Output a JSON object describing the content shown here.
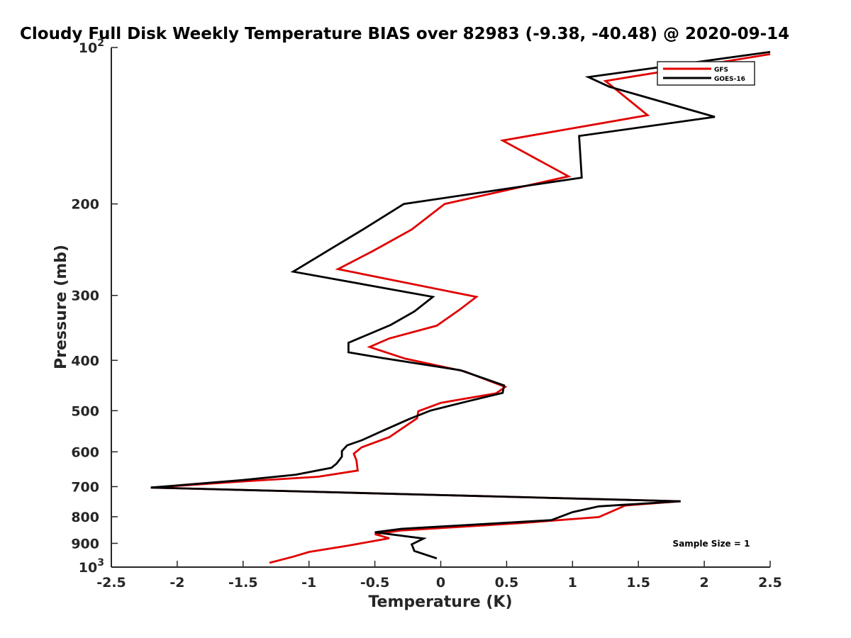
{
  "chart_data": {
    "type": "line",
    "title": "Cloudy Full Disk Weekly Temperature BIAS over 82983 (-9.38, -40.48) @ 2020-09-14",
    "xlabel": "Temperature (K)",
    "ylabel": "Pressure (mb)",
    "xlim": [
      -2.5,
      2.5
    ],
    "ylim": [
      100,
      1000
    ],
    "y_scale": "log",
    "y_reversed": true,
    "x_ticks": [
      "-2.5",
      "-2",
      "-1.5",
      "-1",
      "-0.5",
      "0",
      "0.5",
      "1",
      "1.5",
      "2",
      "2.5"
    ],
    "y_ticks": [
      {
        "value": 100,
        "base": "10",
        "exp": "2",
        "label": ""
      },
      {
        "value": 200,
        "label": "200"
      },
      {
        "value": 300,
        "label": "300"
      },
      {
        "value": 400,
        "label": "400"
      },
      {
        "value": 500,
        "label": "500"
      },
      {
        "value": 600,
        "label": "600"
      },
      {
        "value": 700,
        "label": "700"
      },
      {
        "value": 800,
        "label": "800"
      },
      {
        "value": 900,
        "label": "900"
      },
      {
        "value": 1000,
        "base": "10",
        "exp": "3",
        "label": ""
      }
    ],
    "grid": false,
    "legend_position": "top-right",
    "annotation": "Sample Size = 1",
    "series": [
      {
        "name": "GFS",
        "color": "#e00000",
        "points": [
          [
            2.5,
            103
          ],
          [
            1.25,
            116
          ],
          [
            1.57,
            135
          ],
          [
            0.47,
            151
          ],
          [
            0.97,
            177
          ],
          [
            0.03,
            200
          ],
          [
            -0.22,
            224
          ],
          [
            -0.51,
            246
          ],
          [
            -0.78,
            267
          ],
          [
            0.27,
            302
          ],
          [
            0.14,
            320
          ],
          [
            -0.03,
            343
          ],
          [
            -0.39,
            363
          ],
          [
            -0.54,
            377
          ],
          [
            -0.27,
            397
          ],
          [
            0.18,
            420
          ],
          [
            0.49,
            450
          ],
          [
            0.42,
            463
          ],
          [
            0.0,
            483
          ],
          [
            -0.17,
            501
          ],
          [
            -0.18,
            517
          ],
          [
            -0.39,
            562
          ],
          [
            -0.6,
            588
          ],
          [
            -0.66,
            605
          ],
          [
            -0.64,
            623
          ],
          [
            -0.63,
            652
          ],
          [
            -0.93,
            670
          ],
          [
            -1.5,
            684
          ],
          [
            -2.2,
            703
          ],
          [
            1.82,
            747
          ],
          [
            1.4,
            761
          ],
          [
            1.33,
            775
          ],
          [
            1.2,
            801
          ],
          [
            0.6,
            823
          ],
          [
            -0.3,
            850
          ],
          [
            -0.5,
            864
          ],
          [
            -0.39,
            880
          ],
          [
            -0.7,
            909
          ],
          [
            -1.0,
            935
          ],
          [
            -1.12,
            955
          ],
          [
            -1.3,
            981
          ]
        ]
      },
      {
        "name": "GOES-16",
        "color": "#000000",
        "points": [
          [
            2.5,
            102
          ],
          [
            1.12,
            114
          ],
          [
            1.28,
            119
          ],
          [
            2.08,
            136
          ],
          [
            1.05,
            148
          ],
          [
            1.07,
            178
          ],
          [
            -0.28,
            200
          ],
          [
            -0.59,
            224
          ],
          [
            -0.81,
            242
          ],
          [
            -1.12,
            270
          ],
          [
            -0.06,
            302
          ],
          [
            -0.2,
            322
          ],
          [
            -0.38,
            342
          ],
          [
            -0.7,
            370
          ],
          [
            -0.7,
            386
          ],
          [
            -0.44,
            396
          ],
          [
            0.15,
            418
          ],
          [
            0.48,
            447
          ],
          [
            0.47,
            462
          ],
          [
            0.2,
            480
          ],
          [
            -0.08,
            500
          ],
          [
            -0.24,
            519
          ],
          [
            -0.43,
            545
          ],
          [
            -0.6,
            570
          ],
          [
            -0.71,
            583
          ],
          [
            -0.75,
            598
          ],
          [
            -0.75,
            613
          ],
          [
            -0.79,
            632
          ],
          [
            -0.83,
            644
          ],
          [
            -1.1,
            664
          ],
          [
            -1.5,
            680
          ],
          [
            -2.2,
            703
          ],
          [
            1.82,
            747
          ],
          [
            1.2,
            764
          ],
          [
            1.0,
            784
          ],
          [
            0.84,
            812
          ],
          [
            -0.3,
            844
          ],
          [
            -0.5,
            857
          ],
          [
            -0.13,
            881
          ],
          [
            -0.22,
            904
          ],
          [
            -0.2,
            931
          ],
          [
            -0.03,
            962
          ]
        ]
      }
    ]
  }
}
